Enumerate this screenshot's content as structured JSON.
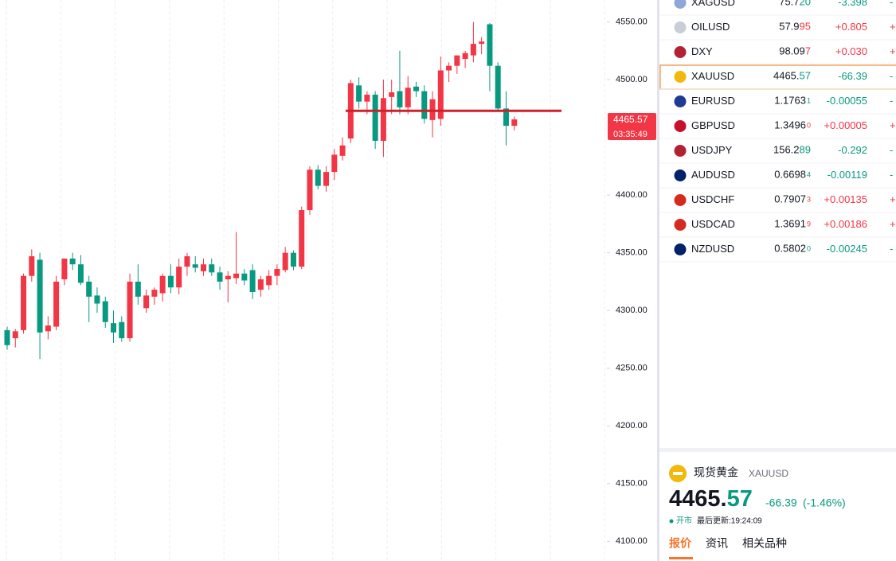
{
  "chart_data": {
    "type": "candlestick",
    "open": [
      4283,
      4276,
      4283,
      4330,
      4344,
      4282,
      4286,
      4327,
      4345,
      4340,
      4325,
      4313,
      4308,
      4289,
      4290,
      4276,
      4325,
      4302,
      4312,
      4315,
      4330,
      4320,
      4338,
      4340,
      4334,
      4340,
      4333,
      4327,
      4328,
      4332,
      4335,
      4318,
      4322,
      4330,
      4335,
      4350,
      4338,
      4387,
      4422,
      4408,
      4420,
      4434,
      4449,
      4495,
      4481,
      4487,
      4447,
      4485,
      4490,
      4476,
      4494,
      4490,
      4465,
      4466,
      4508,
      4512,
      4518,
      4521,
      4531,
      4548,
      4512,
      4475,
      4460
    ],
    "high": [
      4286,
      4284,
      4332,
      4353,
      4350,
      4295,
      4330,
      4345,
      4350,
      4348,
      4330,
      4320,
      4312,
      4300,
      4295,
      4332,
      4340,
      4318,
      4320,
      4332,
      4340,
      4345,
      4350,
      4347,
      4345,
      4345,
      4338,
      4334,
      4368,
      4336,
      4340,
      4330,
      4335,
      4340,
      4355,
      4352,
      4390,
      4425,
      4426,
      4425,
      4440,
      4450,
      4500,
      4502,
      4490,
      4490,
      4500,
      4500,
      4525,
      4503,
      4498,
      4495,
      4490,
      4520,
      4515,
      4520,
      4525,
      4550,
      4537,
      4549,
      4515,
      4490,
      4468
    ],
    "low": [
      4266,
      4268,
      4280,
      4325,
      4258,
      4275,
      4283,
      4322,
      4335,
      4322,
      4290,
      4298,
      4285,
      4272,
      4273,
      4273,
      4305,
      4298,
      4305,
      4308,
      4315,
      4314,
      4330,
      4333,
      4330,
      4330,
      4318,
      4307,
      4323,
      4322,
      4310,
      4312,
      4318,
      4322,
      4333,
      4335,
      4336,
      4383,
      4405,
      4403,
      4413,
      4430,
      4445,
      4475,
      4470,
      4440,
      4433,
      4470,
      4470,
      4470,
      4485,
      4462,
      4450,
      4460,
      4498,
      4505,
      4510,
      4515,
      4522,
      4490,
      4472,
      4443,
      4456
    ],
    "close": [
      4270,
      4282,
      4330,
      4347,
      4281,
      4287,
      4325,
      4345,
      4340,
      4324,
      4312,
      4306,
      4290,
      4281,
      4276,
      4325,
      4312,
      4313,
      4318,
      4330,
      4320,
      4338,
      4347,
      4337,
      4340,
      4333,
      4325,
      4330,
      4332,
      4326,
      4316,
      4327,
      4330,
      4336,
      4350,
      4338,
      4387,
      4422,
      4408,
      4420,
      4435,
      4443,
      4497,
      4481,
      4487,
      4447,
      4484,
      4489,
      4476,
      4493,
      4490,
      4466,
      4483,
      4508,
      4512,
      4521,
      4523,
      4531,
      4533,
      4512,
      4475,
      4460,
      4465.57
    ],
    "up_color": "#f23645",
    "down_color": "#089981",
    "ylim": [
      4083,
      4569
    ],
    "yticks": [
      {
        "value": 4550,
        "label": "4550.00"
      },
      {
        "value": 4500,
        "label": "4500.00"
      },
      {
        "value": 4400,
        "label": "4400.00"
      },
      {
        "value": 4350,
        "label": "4350.00"
      },
      {
        "value": 4300,
        "label": "4300.00"
      },
      {
        "value": 4250,
        "label": "4250.00"
      },
      {
        "value": 4200,
        "label": "4200.00"
      },
      {
        "value": 4150,
        "label": "4150.00"
      },
      {
        "value": 4100,
        "label": "4100.00"
      }
    ],
    "level_line": 4473,
    "price_tag": {
      "value": 4465.57,
      "label": "4465.57"
    },
    "countdown": "03:35:49"
  },
  "watchlist": [
    {
      "symbol": "XAGUSD",
      "price": [
        {
          "text": "75.7",
          "style": "plain"
        },
        {
          "text": "20",
          "style": "color"
        }
      ],
      "change": "-3.398",
      "pct": "-"
    },
    {
      "symbol": "OILUSD",
      "price": [
        {
          "text": "57.9",
          "style": "plain"
        },
        {
          "text": "95",
          "style": "color"
        }
      ],
      "change": "+0.805",
      "pct": "+"
    },
    {
      "symbol": "DXY",
      "price": [
        {
          "text": "98.09",
          "style": "plain"
        },
        {
          "text": "7",
          "style": "color"
        }
      ],
      "change": "+0.030",
      "pct": "+"
    },
    {
      "symbol": "XAUUSD",
      "price": [
        {
          "text": "4465.",
          "style": "plain"
        },
        {
          "text": "57",
          "style": "color"
        }
      ],
      "change": "-66.39",
      "pct": "-"
    },
    {
      "symbol": "EURUSD",
      "price": [
        {
          "text": "1.1763",
          "style": "plain"
        },
        {
          "text": "1",
          "style": "small"
        }
      ],
      "change": "-0.00055",
      "pct": "-"
    },
    {
      "symbol": "GBPUSD",
      "price": [
        {
          "text": "1.3496",
          "style": "plain"
        },
        {
          "text": "0",
          "style": "small"
        }
      ],
      "change": "+0.00005",
      "pct": "+"
    },
    {
      "symbol": "USDJPY",
      "price": [
        {
          "text": "156.2",
          "style": "plain"
        },
        {
          "text": "89",
          "style": "color"
        }
      ],
      "change": "-0.292",
      "pct": "-"
    },
    {
      "symbol": "AUDUSD",
      "price": [
        {
          "text": "0.6698",
          "style": "plain"
        },
        {
          "text": "4",
          "style": "small"
        }
      ],
      "change": "-0.00119",
      "pct": "-"
    },
    {
      "symbol": "USDCHF",
      "price": [
        {
          "text": "0.7907",
          "style": "plain"
        },
        {
          "text": "3",
          "style": "small"
        }
      ],
      "change": "+0.00135",
      "pct": "+"
    },
    {
      "symbol": "USDCAD",
      "price": [
        {
          "text": "1.3691",
          "style": "plain"
        },
        {
          "text": "9",
          "style": "small"
        }
      ],
      "change": "+0.00186",
      "pct": "+"
    },
    {
      "symbol": "NZDUSD",
      "price": [
        {
          "text": "0.5802",
          "style": "plain"
        },
        {
          "text": "0",
          "style": "small"
        }
      ],
      "change": "-0.00245",
      "pct": "-"
    }
  ],
  "quote": {
    "name": "现货黄金",
    "symbol": "XAUUSD",
    "price": [
      {
        "text": "4465.",
        "style": "plain"
      },
      {
        "text": "57",
        "style": "color"
      }
    ],
    "change": "-66.39",
    "change_pct": "(-1.46%)",
    "status": "开市",
    "updated": "最后更新:19:24:09"
  },
  "tabs": [
    "报价",
    "资讯",
    "相关品种"
  ]
}
